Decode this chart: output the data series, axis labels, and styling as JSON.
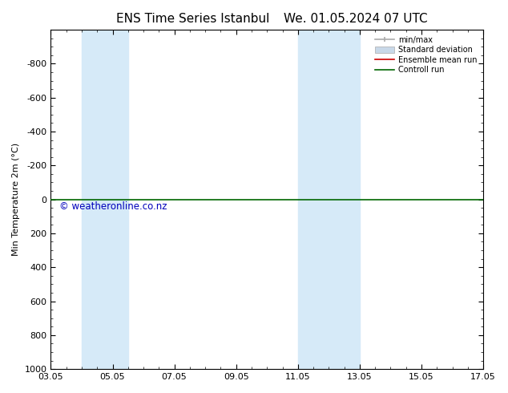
{
  "title_left": "ENS Time Series Istanbul",
  "title_right": "We. 01.05.2024 07 UTC",
  "ylabel": "Min Temperature 2m (°C)",
  "watermark": "© weatheronline.co.nz",
  "xlim": [
    3.05,
    17.05
  ],
  "ylim": [
    1000,
    -1000
  ],
  "yticks": [
    -800,
    -600,
    -400,
    -200,
    0,
    200,
    400,
    600,
    800,
    1000
  ],
  "xticks": [
    3.05,
    5.05,
    7.05,
    9.05,
    11.05,
    13.05,
    15.05,
    17.05
  ],
  "xticklabels": [
    "03.05",
    "05.05",
    "07.05",
    "09.05",
    "11.05",
    "13.05",
    "15.05",
    "17.05"
  ],
  "bg_color": "#ffffff",
  "plot_bg_color": "#ffffff",
  "shaded_bands": [
    {
      "xmin": 4.05,
      "xmax": 5.55,
      "color": "#d6eaf8"
    },
    {
      "xmin": 11.05,
      "xmax": 13.05,
      "color": "#d6eaf8"
    }
  ],
  "green_line_y": 0,
  "legend_items": [
    {
      "label": "min/max",
      "color": "#aaaaaa",
      "lw": 1.2,
      "type": "line_with_caps"
    },
    {
      "label": "Standard deviation",
      "color": "#c8d8e8",
      "lw": 8,
      "type": "bar"
    },
    {
      "label": "Ensemble mean run",
      "color": "#cc0000",
      "lw": 1.2,
      "type": "line"
    },
    {
      "label": "Controll run",
      "color": "#006600",
      "lw": 1.2,
      "type": "line"
    }
  ],
  "watermark_color": "#0000bb",
  "watermark_fontsize": 8.5,
  "title_fontsize": 11,
  "axis_label_fontsize": 8,
  "tick_fontsize": 8
}
